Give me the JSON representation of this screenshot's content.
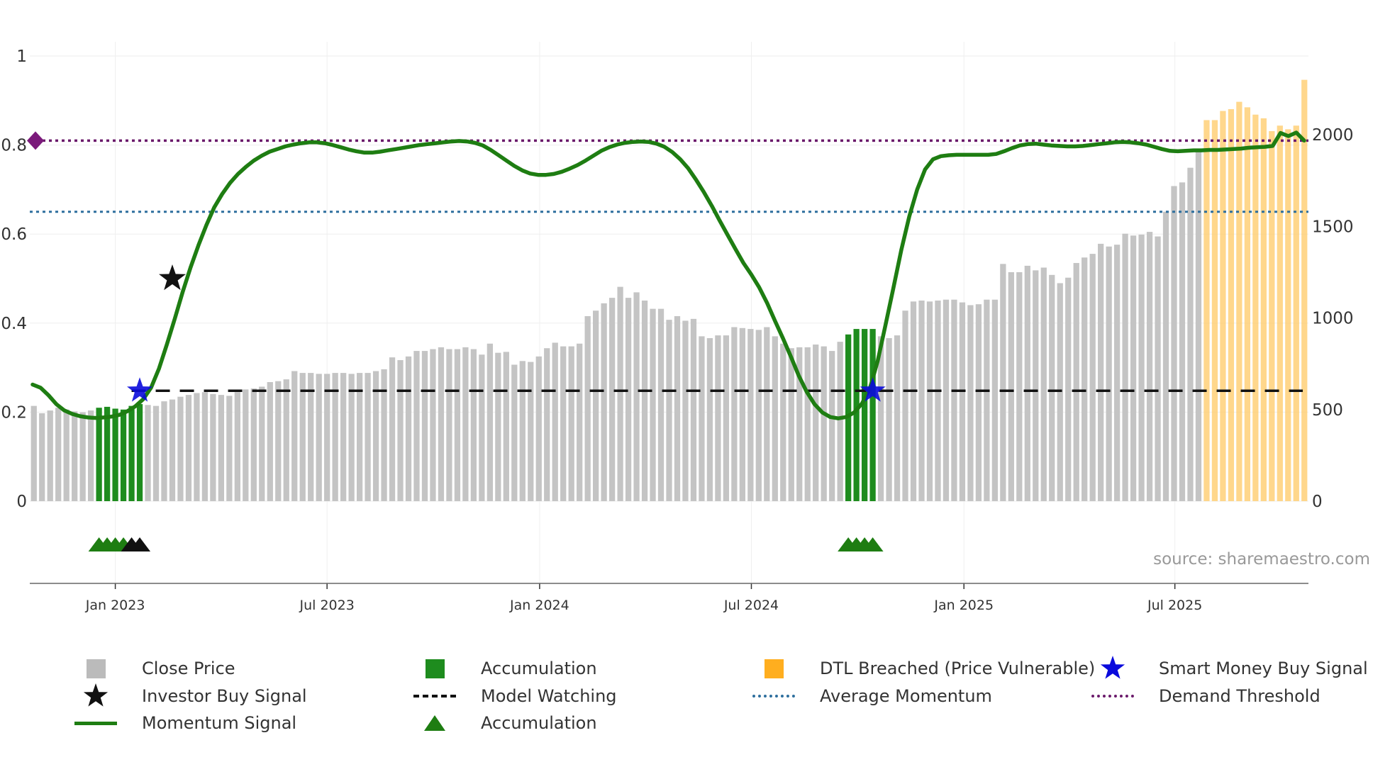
{
  "chart_data": {
    "type": "bar",
    "title": "",
    "source": "source: sharemaestro.com",
    "x_axis": {
      "ticks": [
        "Jan 2023",
        "Jul 2023",
        "Jan 2024",
        "Jul 2024",
        "Jan 2025",
        "Jul 2025"
      ]
    },
    "y_left": {
      "ticks": [
        "0",
        "0.2",
        "0.4",
        "0.6",
        "0.8",
        "1"
      ],
      "range": [
        0,
        1
      ]
    },
    "y_right": {
      "ticks": [
        "0",
        "500",
        "1000",
        "1500",
        "2000"
      ],
      "range": [
        0,
        2430
      ]
    },
    "close_price": [
      520,
      480,
      495,
      510,
      500,
      490,
      485,
      495,
      510,
      515,
      505,
      500,
      520,
      530,
      525,
      520,
      545,
      555,
      570,
      580,
      590,
      595,
      585,
      580,
      575,
      595,
      610,
      615,
      625,
      650,
      655,
      665,
      710,
      700,
      700,
      695,
      695,
      700,
      700,
      695,
      700,
      700,
      710,
      720,
      785,
      770,
      790,
      820,
      820,
      830,
      840,
      830,
      830,
      840,
      830,
      800,
      860,
      810,
      815,
      745,
      765,
      760,
      790,
      835,
      865,
      845,
      845,
      860,
      1010,
      1040,
      1080,
      1110,
      1170,
      1110,
      1140,
      1095,
      1050,
      1050,
      990,
      1010,
      985,
      995,
      900,
      890,
      905,
      905,
      950,
      945,
      940,
      935,
      950,
      900,
      860,
      835,
      840,
      840,
      855,
      845,
      820,
      870,
      910,
      940,
      940,
      940,
      900,
      890,
      905,
      1040,
      1090,
      1095,
      1090,
      1095,
      1100,
      1100,
      1085,
      1070,
      1075,
      1100,
      1100,
      1295,
      1250,
      1250,
      1285,
      1260,
      1275,
      1235,
      1190,
      1220,
      1300,
      1330,
      1350,
      1405,
      1390,
      1400,
      1460,
      1450,
      1455,
      1470,
      1445,
      1580,
      1720,
      1740,
      1820,
      1920,
      2080,
      2080,
      2130,
      2140,
      2180,
      2150,
      2110,
      2090,
      2020,
      2050,
      2030,
      2050,
      2300
    ],
    "bar_regions": {
      "accumulation": [
        [
          8,
          13
        ],
        [
          100,
          103
        ]
      ],
      "dtl_breached": [
        [
          144,
          156
        ]
      ]
    },
    "momentum_signal": [
      0.262,
      0.255,
      0.238,
      0.218,
      0.204,
      0.196,
      0.191,
      0.188,
      0.187,
      0.188,
      0.19,
      0.194,
      0.202,
      0.213,
      0.229,
      0.255,
      0.298,
      0.352,
      0.41,
      0.47,
      0.525,
      0.575,
      0.62,
      0.66,
      0.69,
      0.715,
      0.735,
      0.751,
      0.765,
      0.776,
      0.785,
      0.791,
      0.797,
      0.801,
      0.804,
      0.806,
      0.806,
      0.804,
      0.8,
      0.795,
      0.79,
      0.786,
      0.783,
      0.783,
      0.785,
      0.788,
      0.791,
      0.794,
      0.797,
      0.8,
      0.802,
      0.804,
      0.806,
      0.808,
      0.809,
      0.808,
      0.805,
      0.799,
      0.789,
      0.777,
      0.765,
      0.753,
      0.743,
      0.736,
      0.733,
      0.733,
      0.735,
      0.74,
      0.747,
      0.755,
      0.765,
      0.776,
      0.787,
      0.795,
      0.801,
      0.805,
      0.807,
      0.808,
      0.807,
      0.803,
      0.796,
      0.784,
      0.768,
      0.748,
      0.722,
      0.694,
      0.663,
      0.63,
      0.598,
      0.566,
      0.535,
      0.509,
      0.48,
      0.445,
      0.405,
      0.366,
      0.325,
      0.282,
      0.246,
      0.218,
      0.199,
      0.189,
      0.186,
      0.189,
      0.199,
      0.219,
      0.253,
      0.315,
      0.397,
      0.48,
      0.565,
      0.64,
      0.7,
      0.745,
      0.768,
      0.775,
      0.777,
      0.778,
      0.778,
      0.778,
      0.778,
      0.778,
      0.78,
      0.786,
      0.793,
      0.799,
      0.802,
      0.803,
      0.801,
      0.799,
      0.798,
      0.797,
      0.797,
      0.798,
      0.8,
      0.802,
      0.804,
      0.806,
      0.807,
      0.806,
      0.804,
      0.801,
      0.796,
      0.791,
      0.787,
      0.786,
      0.787,
      0.788,
      0.788,
      0.789,
      0.789,
      0.79,
      0.791,
      0.792,
      0.794,
      0.795,
      0.796,
      0.798,
      0.827,
      0.82,
      0.828,
      0.81
    ],
    "model_watching_level": 0.248,
    "average_momentum": 0.65,
    "demand_threshold": 0.81,
    "investor_buy_signal": [
      {
        "index": 17,
        "y": 0.5
      }
    ],
    "smart_money_buy_signal": [
      {
        "index": 13,
        "y": 0.248
      },
      {
        "index": 103,
        "y": 0.248
      }
    ],
    "accumulation_markers": [
      8,
      9,
      10,
      11,
      100,
      101,
      102,
      103
    ],
    "investor_markers": [
      12,
      13
    ],
    "legend": [
      {
        "key": "close",
        "label": "Close Price",
        "color": "#bbbbbb"
      },
      {
        "key": "accum_bar",
        "label": "Accumulation",
        "color": "#1e8c1e"
      },
      {
        "key": "dtl",
        "label": "DTL Breached (Price Vulnerable)",
        "color": "#ffae1f"
      },
      {
        "key": "smart",
        "label": "Smart Money Buy Signal",
        "color": "#0a0adc"
      },
      {
        "key": "investor",
        "label": "Investor Buy Signal",
        "color": "#111111"
      },
      {
        "key": "watching",
        "label": "Model Watching",
        "color": "#111111"
      },
      {
        "key": "avg",
        "label": "Average Momentum",
        "color": "#2e6f9e"
      },
      {
        "key": "demand",
        "label": "Demand Threshold",
        "color": "#6b1a6b"
      },
      {
        "key": "momentum",
        "label": "Momentum Signal",
        "color": "#1e7d12"
      },
      {
        "key": "accum_tri",
        "label": "Accumulation",
        "color": "#1e7d12"
      }
    ]
  }
}
